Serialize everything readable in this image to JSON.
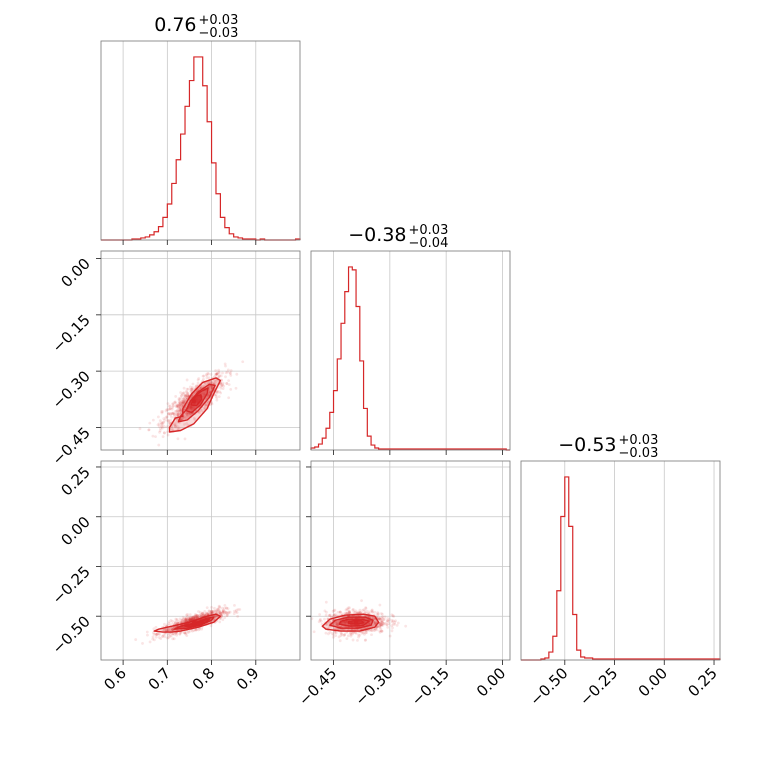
{
  "chart_data": {
    "type": "corner",
    "color": "#d62728",
    "grid": true,
    "parameters": [
      {
        "range": [
          0.55,
          1.0
        ],
        "ticks": [
          0.6,
          0.7,
          0.8,
          0.9
        ],
        "tick_labels": [
          "0.6",
          "0.7",
          "0.8",
          "0.9"
        ],
        "title": {
          "median": "0.76",
          "upper": "+0.03",
          "lower": "−0.03"
        }
      },
      {
        "range": [
          -0.51,
          0.02
        ],
        "ticks": [
          -0.45,
          -0.3,
          -0.15,
          0.0
        ],
        "tick_labels": [
          "−0.45",
          "−0.30",
          "−0.15",
          "0.00"
        ],
        "title": {
          "median": "−0.38",
          "upper": "+0.03",
          "lower": "−0.04"
        }
      },
      {
        "range": [
          -0.72,
          0.28
        ],
        "ticks": [
          -0.5,
          -0.25,
          0.0,
          0.25
        ],
        "tick_labels": [
          "−0.50",
          "−0.25",
          "0.00",
          "0.25"
        ],
        "title": {
          "median": "−0.53",
          "upper": "+0.03",
          "lower": "−0.03"
        }
      }
    ],
    "histograms": [
      {
        "param": 0,
        "bin_edges": [
          0.55,
          0.56,
          0.57,
          0.58,
          0.59,
          0.6,
          0.61,
          0.62,
          0.63,
          0.64,
          0.65,
          0.66,
          0.67,
          0.68,
          0.69,
          0.7,
          0.71,
          0.72,
          0.73,
          0.74,
          0.75,
          0.76,
          0.77,
          0.78,
          0.79,
          0.8,
          0.81,
          0.82,
          0.83,
          0.84,
          0.85,
          0.86,
          0.87,
          0.88,
          0.89,
          0.9,
          0.91,
          0.92,
          0.93,
          0.94,
          0.95,
          0.96,
          0.97,
          0.98,
          0.99,
          1.0
        ],
        "counts": [
          0,
          0,
          0,
          0,
          0,
          0,
          0,
          1,
          1,
          2,
          3,
          5,
          8,
          13,
          22,
          35,
          55,
          78,
          103,
          130,
          155,
          178,
          178,
          150,
          115,
          75,
          45,
          22,
          12,
          6,
          3,
          2,
          1,
          1,
          1,
          0,
          1,
          0,
          0,
          0,
          0,
          0,
          0,
          0,
          1
        ]
      },
      {
        "param": 1,
        "bin_edges": [
          -0.51,
          -0.5,
          -0.49,
          -0.48,
          -0.47,
          -0.46,
          -0.45,
          -0.44,
          -0.43,
          -0.42,
          -0.41,
          -0.4,
          -0.39,
          -0.38,
          -0.37,
          -0.36,
          -0.35,
          -0.34,
          -0.33,
          -0.32,
          -0.31,
          -0.3,
          -0.29,
          -0.28,
          -0.27,
          -0.26,
          -0.25,
          -0.24,
          -0.23,
          -0.22,
          -0.21,
          -0.2,
          -0.19,
          -0.18,
          -0.17,
          -0.16,
          -0.15,
          -0.14,
          -0.13,
          -0.12,
          -0.11,
          -0.1,
          -0.09,
          -0.08,
          -0.07,
          -0.06,
          -0.05,
          -0.04,
          -0.03,
          -0.02,
          -0.01,
          0.0,
          0.01,
          0.02
        ],
        "counts": [
          2,
          3,
          6,
          12,
          22,
          38,
          60,
          92,
          128,
          160,
          185,
          182,
          145,
          90,
          42,
          14,
          5,
          2,
          1,
          1,
          1,
          1,
          1,
          1,
          1,
          1,
          1,
          1,
          1,
          1,
          1,
          1,
          1,
          1,
          1,
          1,
          1,
          1,
          1,
          1,
          1,
          1,
          1,
          1,
          1,
          1,
          1,
          1,
          1,
          1,
          1,
          1,
          0
        ]
      },
      {
        "param": 2,
        "bin_edges": [
          -0.72,
          -0.7,
          -0.68,
          -0.66,
          -0.64,
          -0.62,
          -0.6,
          -0.58,
          -0.56,
          -0.54,
          -0.52,
          -0.5,
          -0.48,
          -0.46,
          -0.44,
          -0.42,
          -0.4,
          -0.38,
          -0.36,
          -0.34,
          -0.32,
          -0.3,
          -0.28,
          -0.26,
          -0.24,
          -0.22,
          -0.2,
          -0.18,
          -0.16,
          -0.14,
          -0.12,
          -0.1,
          -0.08,
          -0.06,
          -0.04,
          -0.02,
          0.0,
          0.02,
          0.04,
          0.06,
          0.08,
          0.1,
          0.12,
          0.14,
          0.16,
          0.18,
          0.2,
          0.22,
          0.24,
          0.26,
          0.28
        ],
        "counts": [
          0,
          0,
          0,
          0,
          0,
          1,
          2,
          8,
          24,
          70,
          145,
          185,
          135,
          46,
          10,
          3,
          2,
          2,
          1,
          1,
          1,
          1,
          1,
          1,
          1,
          1,
          1,
          1,
          1,
          1,
          1,
          1,
          1,
          1,
          1,
          1,
          1,
          1,
          1,
          1,
          1,
          1,
          1,
          1,
          1,
          1,
          1,
          1,
          1,
          1
        ]
      }
    ],
    "scatter_panels": [
      {
        "x_param": 0,
        "y_param": 1,
        "sample_center": [
          0.76,
          -0.38
        ],
        "sample_spread": [
          0.035,
          0.035
        ],
        "correlation": 0.8,
        "contours": [
          [
            [
              0.735,
              -0.42
            ],
            [
              0.718,
              -0.425
            ],
            [
              0.705,
              -0.45
            ],
            [
              0.705,
              -0.462
            ],
            [
              0.73,
              -0.458
            ],
            [
              0.76,
              -0.44
            ],
            [
              0.79,
              -0.4
            ],
            [
              0.805,
              -0.36
            ],
            [
              0.82,
              -0.325
            ],
            [
              0.81,
              -0.318
            ],
            [
              0.78,
              -0.33
            ],
            [
              0.755,
              -0.36
            ],
            [
              0.735,
              -0.4
            ]
          ],
          [
            [
              0.745,
              -0.4
            ],
            [
              0.73,
              -0.42
            ],
            [
              0.725,
              -0.435
            ],
            [
              0.745,
              -0.43
            ],
            [
              0.77,
              -0.405
            ],
            [
              0.795,
              -0.37
            ],
            [
              0.808,
              -0.338
            ],
            [
              0.795,
              -0.335
            ],
            [
              0.77,
              -0.355
            ],
            [
              0.752,
              -0.38
            ]
          ],
          [
            [
              0.752,
              -0.38
            ],
            [
              0.742,
              -0.405
            ],
            [
              0.755,
              -0.41
            ],
            [
              0.775,
              -0.39
            ],
            [
              0.79,
              -0.36
            ],
            [
              0.792,
              -0.345
            ],
            [
              0.775,
              -0.355
            ],
            [
              0.76,
              -0.37
            ]
          ],
          [
            [
              0.758,
              -0.375
            ],
            [
              0.754,
              -0.39
            ],
            [
              0.766,
              -0.392
            ],
            [
              0.778,
              -0.375
            ],
            [
              0.776,
              -0.363
            ],
            [
              0.765,
              -0.366
            ]
          ]
        ]
      },
      {
        "x_param": 0,
        "y_param": 2,
        "sample_center": [
          0.76,
          -0.53
        ],
        "sample_spread": [
          0.035,
          0.03
        ],
        "correlation": 0.8,
        "contours": [
          [
            [
              0.69,
              -0.58
            ],
            [
              0.67,
              -0.575
            ],
            [
              0.68,
              -0.565
            ],
            [
              0.71,
              -0.55
            ],
            [
              0.75,
              -0.53
            ],
            [
              0.79,
              -0.5
            ],
            [
              0.81,
              -0.49
            ],
            [
              0.82,
              -0.5
            ],
            [
              0.805,
              -0.53
            ],
            [
              0.77,
              -0.555
            ],
            [
              0.73,
              -0.575
            ],
            [
              0.71,
              -0.58
            ]
          ],
          [
            [
              0.715,
              -0.565
            ],
            [
              0.73,
              -0.55
            ],
            [
              0.76,
              -0.535
            ],
            [
              0.79,
              -0.51
            ],
            [
              0.805,
              -0.505
            ],
            [
              0.8,
              -0.52
            ],
            [
              0.775,
              -0.545
            ],
            [
              0.745,
              -0.56
            ]
          ],
          [
            [
              0.74,
              -0.55
            ],
            [
              0.76,
              -0.54
            ],
            [
              0.785,
              -0.52
            ],
            [
              0.795,
              -0.515
            ],
            [
              0.79,
              -0.525
            ],
            [
              0.77,
              -0.545
            ],
            [
              0.752,
              -0.553
            ]
          ],
          [
            [
              0.755,
              -0.545
            ],
            [
              0.765,
              -0.538
            ],
            [
              0.78,
              -0.527
            ],
            [
              0.782,
              -0.532
            ],
            [
              0.77,
              -0.544
            ],
            [
              0.76,
              -0.548
            ]
          ]
        ]
      },
      {
        "x_param": 1,
        "y_param": 2,
        "sample_center": [
          -0.39,
          -0.53
        ],
        "sample_spread": [
          0.04,
          0.03
        ],
        "correlation": 0.1,
        "contours": [
          [
            [
              -0.48,
              -0.55
            ],
            [
              -0.47,
              -0.565
            ],
            [
              -0.43,
              -0.575
            ],
            [
              -0.38,
              -0.575
            ],
            [
              -0.34,
              -0.555
            ],
            [
              -0.33,
              -0.53
            ],
            [
              -0.34,
              -0.5
            ],
            [
              -0.37,
              -0.49
            ],
            [
              -0.42,
              -0.495
            ],
            [
              -0.46,
              -0.515
            ]
          ],
          [
            [
              -0.46,
              -0.545
            ],
            [
              -0.43,
              -0.56
            ],
            [
              -0.385,
              -0.56
            ],
            [
              -0.35,
              -0.545
            ],
            [
              -0.345,
              -0.52
            ],
            [
              -0.365,
              -0.505
            ],
            [
              -0.41,
              -0.505
            ],
            [
              -0.445,
              -0.52
            ]
          ],
          [
            [
              -0.435,
              -0.54
            ],
            [
              -0.405,
              -0.55
            ],
            [
              -0.37,
              -0.545
            ],
            [
              -0.355,
              -0.525
            ],
            [
              -0.375,
              -0.515
            ],
            [
              -0.41,
              -0.515
            ],
            [
              -0.43,
              -0.525
            ]
          ],
          [
            [
              -0.41,
              -0.535
            ],
            [
              -0.39,
              -0.54
            ],
            [
              -0.37,
              -0.533
            ],
            [
              -0.375,
              -0.523
            ],
            [
              -0.395,
              -0.522
            ],
            [
              -0.41,
              -0.527
            ]
          ]
        ]
      }
    ]
  }
}
